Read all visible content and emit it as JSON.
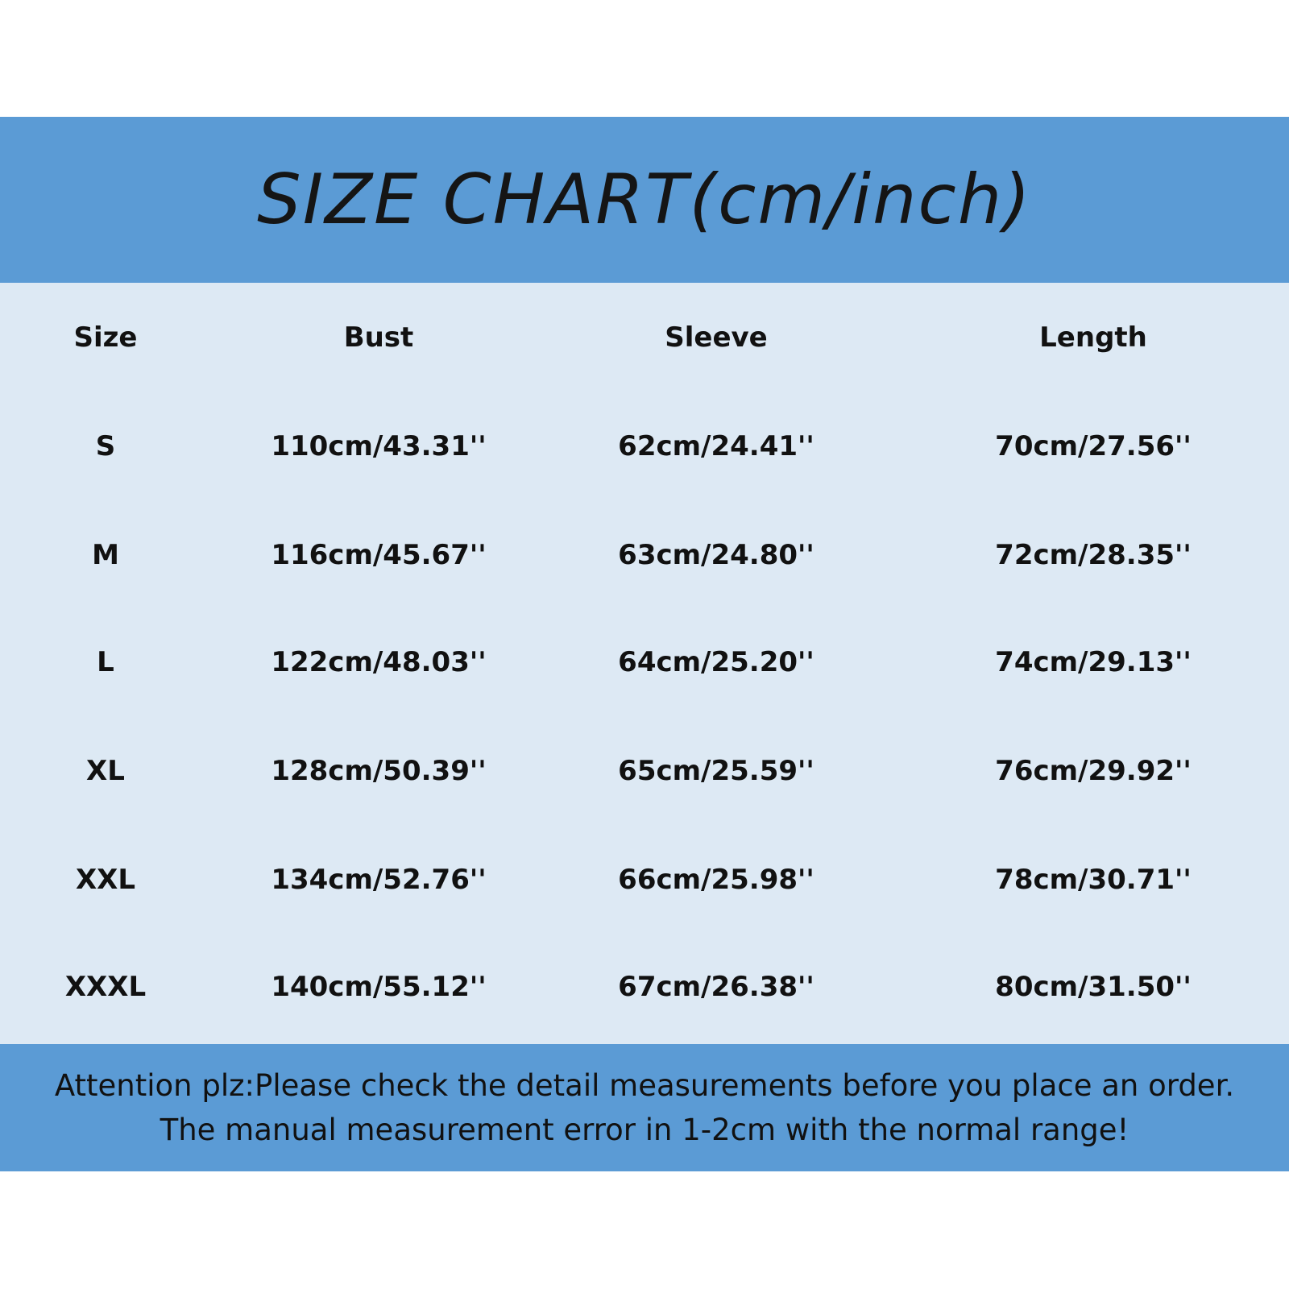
{
  "title": "SIZE CHART(cm/inch)",
  "colors": {
    "banner": "#5b9bd5",
    "table_bg": "#dde9f4"
  },
  "table": {
    "headers": [
      "Size",
      "Bust",
      "Sleeve",
      "Length"
    ],
    "rows": [
      [
        "S",
        "110cm/43.31''",
        "62cm/24.41''",
        "70cm/27.56''"
      ],
      [
        "M",
        "116cm/45.67''",
        "63cm/24.80''",
        "72cm/28.35''"
      ],
      [
        "L",
        "122cm/48.03''",
        "64cm/25.20''",
        "74cm/29.13''"
      ],
      [
        "XL",
        "128cm/50.39''",
        "65cm/25.59''",
        "76cm/29.92''"
      ],
      [
        "XXL",
        "134cm/52.76''",
        "66cm/25.98''",
        "78cm/30.71''"
      ],
      [
        "XXXL",
        "140cm/55.12''",
        "67cm/26.38''",
        "80cm/31.50''"
      ]
    ]
  },
  "notes": [
    "Attention plz:Please check the detail measurements before you place an order.",
    "The manual measurement error in 1-2cm with the normal range!"
  ]
}
